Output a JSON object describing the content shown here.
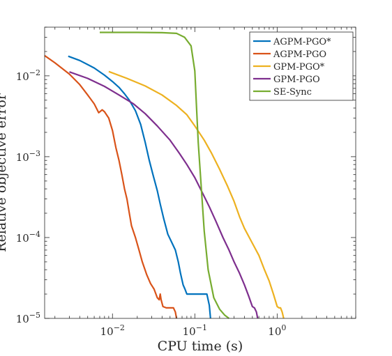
{
  "chart_data": {
    "type": "line",
    "xlabel": "CPU time (s)",
    "ylabel": "Relative objective error",
    "xscale": "log",
    "yscale": "log",
    "xlim": [
      0.0015,
      9
    ],
    "ylim": [
      1e-05,
      0.04
    ],
    "xticks": [
      {
        "value": 0.01,
        "base": "10",
        "exp": "−2"
      },
      {
        "value": 0.1,
        "base": "10",
        "exp": "−1"
      },
      {
        "value": 1,
        "base": "10",
        "exp": "0"
      }
    ],
    "yticks": [
      {
        "value": 1e-05,
        "base": "10",
        "exp": "−5"
      },
      {
        "value": 0.0001,
        "base": "10",
        "exp": "−4"
      },
      {
        "value": 0.001,
        "base": "10",
        "exp": "−3"
      },
      {
        "value": 0.01,
        "base": "10",
        "exp": "−2"
      }
    ],
    "grid": false,
    "legend_position": "top-right",
    "series": [
      {
        "name": "AGPM-PGO*",
        "color": "#0072BD",
        "points": [
          [
            0.0029,
            0.0175
          ],
          [
            0.004,
            0.0155
          ],
          [
            0.006,
            0.0125
          ],
          [
            0.008,
            0.0102
          ],
          [
            0.01,
            0.0085
          ],
          [
            0.012,
            0.0072
          ],
          [
            0.014,
            0.006
          ],
          [
            0.016,
            0.005
          ],
          [
            0.019,
            0.0037
          ],
          [
            0.022,
            0.0025
          ],
          [
            0.025,
            0.0015
          ],
          [
            0.028,
            0.0009
          ],
          [
            0.031,
            0.0006
          ],
          [
            0.035,
            0.00038
          ],
          [
            0.038,
            0.00026
          ],
          [
            0.042,
            0.00017
          ],
          [
            0.047,
            0.00011
          ],
          [
            0.053,
            8.5e-05
          ],
          [
            0.058,
            7e-05
          ],
          [
            0.063,
            5e-05
          ],
          [
            0.067,
            3.6e-05
          ],
          [
            0.072,
            2.6e-05
          ],
          [
            0.076,
            2.3e-05
          ],
          [
            0.08,
            2e-05
          ],
          [
            0.09,
            2e-05
          ],
          [
            0.1,
            2e-05
          ],
          [
            0.12,
            2e-05
          ],
          [
            0.14,
            2e-05
          ],
          [
            0.15,
            1.45e-05
          ],
          [
            0.155,
            1e-05
          ]
        ]
      },
      {
        "name": "AGPM-PGO",
        "color": "#D95319",
        "points": [
          [
            0.0015,
            0.0178
          ],
          [
            0.002,
            0.0145
          ],
          [
            0.003,
            0.0105
          ],
          [
            0.004,
            0.0078
          ],
          [
            0.005,
            0.0058
          ],
          [
            0.006,
            0.0045
          ],
          [
            0.0068,
            0.0035
          ],
          [
            0.0075,
            0.0038
          ],
          [
            0.008,
            0.0036
          ],
          [
            0.009,
            0.003
          ],
          [
            0.01,
            0.0021
          ],
          [
            0.011,
            0.0013
          ],
          [
            0.012,
            0.0009
          ],
          [
            0.013,
            0.0006
          ],
          [
            0.014,
            0.0004
          ],
          [
            0.015,
            0.0003
          ],
          [
            0.016,
            0.0002
          ],
          [
            0.017,
            0.00014
          ],
          [
            0.019,
            0.0001
          ],
          [
            0.021,
            7e-05
          ],
          [
            0.023,
            5e-05
          ],
          [
            0.026,
            3.5e-05
          ],
          [
            0.029,
            2.7e-05
          ],
          [
            0.032,
            2.3e-05
          ],
          [
            0.035,
            1.8e-05
          ],
          [
            0.037,
            1.7e-05
          ],
          [
            0.038,
            2e-05
          ],
          [
            0.039,
            1.7e-05
          ],
          [
            0.041,
            1.4e-05
          ],
          [
            0.045,
            1.35e-05
          ],
          [
            0.05,
            1.35e-05
          ],
          [
            0.055,
            1.35e-05
          ],
          [
            0.058,
            1.2e-05
          ],
          [
            0.06,
            1e-05
          ]
        ]
      },
      {
        "name": "GPM-PGO*",
        "color": "#EDB120",
        "points": [
          [
            0.009,
            0.0113
          ],
          [
            0.015,
            0.0093
          ],
          [
            0.025,
            0.0075
          ],
          [
            0.04,
            0.0058
          ],
          [
            0.06,
            0.0043
          ],
          [
            0.08,
            0.0033
          ],
          [
            0.1,
            0.0024
          ],
          [
            0.13,
            0.0016
          ],
          [
            0.16,
            0.0011
          ],
          [
            0.2,
            0.0007
          ],
          [
            0.25,
            0.00043
          ],
          [
            0.3,
            0.00028
          ],
          [
            0.35,
            0.00018
          ],
          [
            0.4,
            0.00013
          ],
          [
            0.5,
            8.5e-05
          ],
          [
            0.6,
            6e-05
          ],
          [
            0.7,
            4e-05
          ],
          [
            0.8,
            2.9e-05
          ],
          [
            0.9,
            2e-05
          ],
          [
            1,
            1.4e-05
          ],
          [
            1.05,
            1.35e-05
          ],
          [
            1.1,
            1.35e-05
          ],
          [
            1.15,
            1.2e-05
          ],
          [
            1.2,
            1e-05
          ]
        ]
      },
      {
        "name": "GPM-PGO",
        "color": "#7E2F8E",
        "points": [
          [
            0.003,
            0.0112
          ],
          [
            0.005,
            0.0093
          ],
          [
            0.008,
            0.0074
          ],
          [
            0.012,
            0.0058
          ],
          [
            0.018,
            0.0045
          ],
          [
            0.025,
            0.0034
          ],
          [
            0.035,
            0.0024
          ],
          [
            0.05,
            0.0016
          ],
          [
            0.065,
            0.0011
          ],
          [
            0.08,
            0.0008
          ],
          [
            0.1,
            0.00055
          ],
          [
            0.12,
            0.00038
          ],
          [
            0.15,
            0.00024
          ],
          [
            0.18,
            0.00016
          ],
          [
            0.22,
            0.0001
          ],
          [
            0.26,
            7e-05
          ],
          [
            0.3,
            5e-05
          ],
          [
            0.35,
            3.6e-05
          ],
          [
            0.4,
            2.6e-05
          ],
          [
            0.45,
            1.9e-05
          ],
          [
            0.5,
            1.4e-05
          ],
          [
            0.53,
            1.35e-05
          ],
          [
            0.56,
            1.2e-05
          ],
          [
            0.58,
            1e-05
          ]
        ]
      },
      {
        "name": "SE-Sync",
        "color": "#77AC30",
        "points": [
          [
            0.007,
            0.0345
          ],
          [
            0.02,
            0.0345
          ],
          [
            0.04,
            0.0342
          ],
          [
            0.06,
            0.0335
          ],
          [
            0.075,
            0.03
          ],
          [
            0.09,
            0.0235
          ],
          [
            0.1,
            0.0115
          ],
          [
            0.105,
            0.004
          ],
          [
            0.11,
            0.0015
          ],
          [
            0.12,
            0.0004
          ],
          [
            0.13,
            0.00012
          ],
          [
            0.145,
            4e-05
          ],
          [
            0.17,
            1.8e-05
          ],
          [
            0.2,
            1.3e-05
          ],
          [
            0.23,
            1.1e-05
          ],
          [
            0.26,
            1e-05
          ]
        ]
      }
    ]
  }
}
